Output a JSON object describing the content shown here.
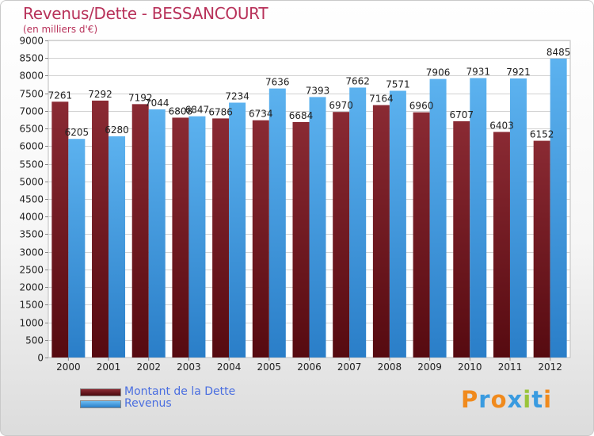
{
  "title": "Revenus/Dette - BESSANCOURT",
  "subtitle": "(en milliers d'€)",
  "colors": {
    "title": "#b8325a",
    "dette": "#6b1520",
    "revenus": "#3d95dd",
    "legend_text": "#4a6ee0"
  },
  "legend": {
    "dette_label": "Montant de la Dette",
    "revenus_label": "Revenus"
  },
  "logo": {
    "text": "Proxiti"
  },
  "chart_data": {
    "type": "bar",
    "title": "Revenus/Dette - BESSANCOURT",
    "subtitle": "(en milliers d'€)",
    "categories": [
      "2000",
      "2001",
      "2002",
      "2003",
      "2004",
      "2005",
      "2006",
      "2007",
      "2008",
      "2009",
      "2010",
      "2011",
      "2012"
    ],
    "series": [
      {
        "name": "Montant de la Dette",
        "values": [
          7261,
          7292,
          7192,
          6808,
          6786,
          6734,
          6684,
          6970,
          7164,
          6960,
          6707,
          6403,
          6152
        ]
      },
      {
        "name": "Revenus",
        "values": [
          6205,
          6280,
          7044,
          6847,
          7234,
          7636,
          7393,
          7662,
          7571,
          7906,
          7931,
          7921,
          8485
        ]
      }
    ],
    "ylim": [
      0,
      9000
    ],
    "ytick_step": 500,
    "grid": true,
    "legend_position": "bottom-left"
  }
}
